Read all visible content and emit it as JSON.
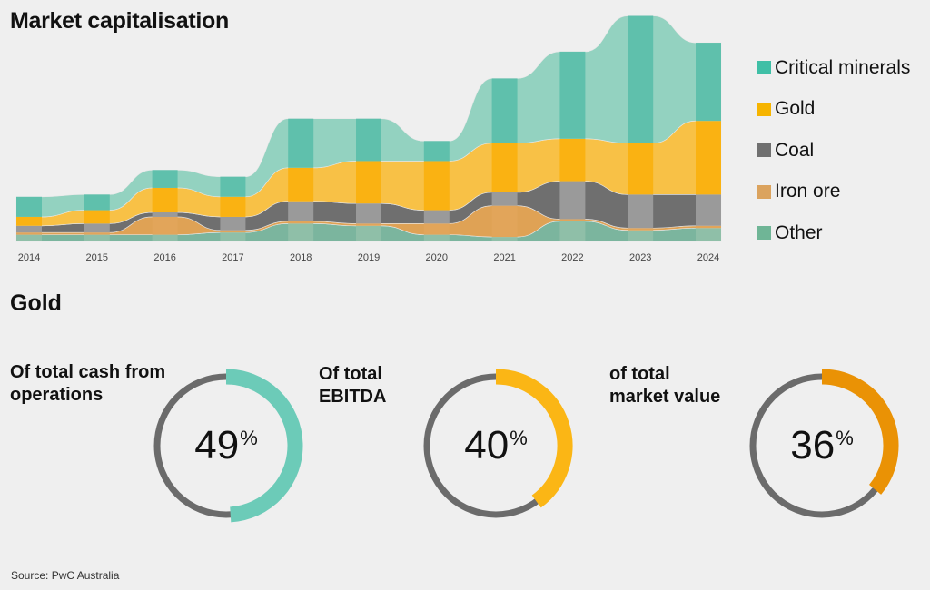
{
  "header": {
    "title": "Market capitalisation"
  },
  "chart_data": {
    "type": "area",
    "title": "Market capitalisation",
    "categories": [
      "2014",
      "2015",
      "2016",
      "2017",
      "2018",
      "2019",
      "2020",
      "2021",
      "2022",
      "2023",
      "2024"
    ],
    "series": [
      {
        "name": "Other",
        "values": [
          3,
          3,
          3,
          4,
          8,
          7,
          3,
          2,
          9,
          5,
          6
        ]
      },
      {
        "name": "Iron ore",
        "values": [
          1,
          1,
          8,
          1,
          1,
          1,
          5,
          14,
          1,
          1,
          1
        ]
      },
      {
        "name": "Coal",
        "values": [
          3,
          4,
          2,
          6,
          9,
          9,
          6,
          6,
          17,
          15,
          14
        ]
      },
      {
        "name": "Gold",
        "values": [
          4,
          6,
          11,
          9,
          15,
          19,
          22,
          22,
          19,
          23,
          33
        ]
      },
      {
        "name": "Critical minerals",
        "values": [
          9,
          7,
          8,
          9,
          22,
          19,
          9,
          29,
          39,
          57,
          35
        ]
      }
    ],
    "colors": {
      "Critical minerals": "#93d2c0",
      "Gold": "#f8c146",
      "Coal": "#6f6f6f",
      "Iron ore": "#dfa255",
      "Other": "#7bb59e"
    },
    "band_colors": {
      "Critical minerals": "#5fc0ac",
      "Gold": "#fab212",
      "Coal": "#9a9a9a",
      "Iron ore": "#e2a55a",
      "Other": "#8fbfa8"
    },
    "legend_placement": "right",
    "grid": false,
    "ylim": [
      0,
      100
    ]
  },
  "legend": {
    "items": [
      {
        "label": "Critical minerals",
        "color": "#3fbfa6"
      },
      {
        "label": "Gold",
        "color": "#f6b400"
      },
      {
        "label": "Coal",
        "color": "#707070"
      },
      {
        "label": "Iron ore",
        "color": "#dba35e"
      },
      {
        "label": "Other",
        "color": "#6fb596"
      }
    ]
  },
  "gold_section": {
    "title": "Gold",
    "metrics": [
      {
        "line1": "Of total cash from",
        "line2": "operations",
        "value": "49",
        "unit": "%",
        "fraction": 0.49,
        "color": "#6ccbb8"
      },
      {
        "line1": "Of total",
        "line2": "EBITDA",
        "value": "40",
        "unit": "%",
        "fraction": 0.4,
        "color": "#fbb615"
      },
      {
        "line1": "of total",
        "line2": "market value",
        "value": "36",
        "unit": "%",
        "fraction": 0.36,
        "color": "#ea9205"
      }
    ],
    "track_color": "#6b6b6b"
  },
  "footer": {
    "source": "Source: PwC Australia"
  }
}
